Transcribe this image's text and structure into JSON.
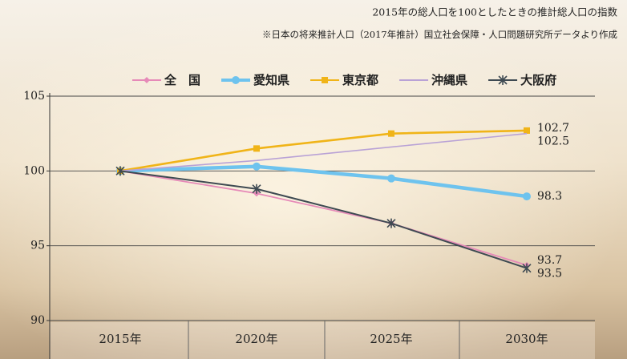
{
  "chart_data": {
    "type": "line",
    "title": "2015年の総人口を100としたときの推計総人口の指数",
    "subtitle": "※日本の将来推計人口（2017年推計）国立社会保障・人口問題研究所データより作成",
    "categories": [
      "2015年",
      "2020年",
      "2025年",
      "2030年"
    ],
    "series": [
      {
        "name": "全　国",
        "color": "#e68ab8",
        "marker": "diamond",
        "values": [
          100,
          98.5,
          96.5,
          93.7
        ]
      },
      {
        "name": "愛知県",
        "color": "#6ec3ee",
        "marker": "circle",
        "values": [
          100,
          100.3,
          99.5,
          98.3
        ]
      },
      {
        "name": "東京都",
        "color": "#f0b418",
        "marker": "square",
        "values": [
          100,
          101.5,
          102.5,
          102.7
        ]
      },
      {
        "name": "沖縄県",
        "color": "#b9a2d6",
        "marker": "none",
        "values": [
          100,
          100.7,
          101.6,
          102.5
        ]
      },
      {
        "name": "大阪府",
        "color": "#3e4a52",
        "marker": "star",
        "values": [
          100,
          98.8,
          96.5,
          93.5
        ]
      }
    ],
    "ylim": [
      90,
      105
    ],
    "yticks": [
      90,
      95,
      100,
      105
    ],
    "grid": true,
    "legend": "top"
  }
}
